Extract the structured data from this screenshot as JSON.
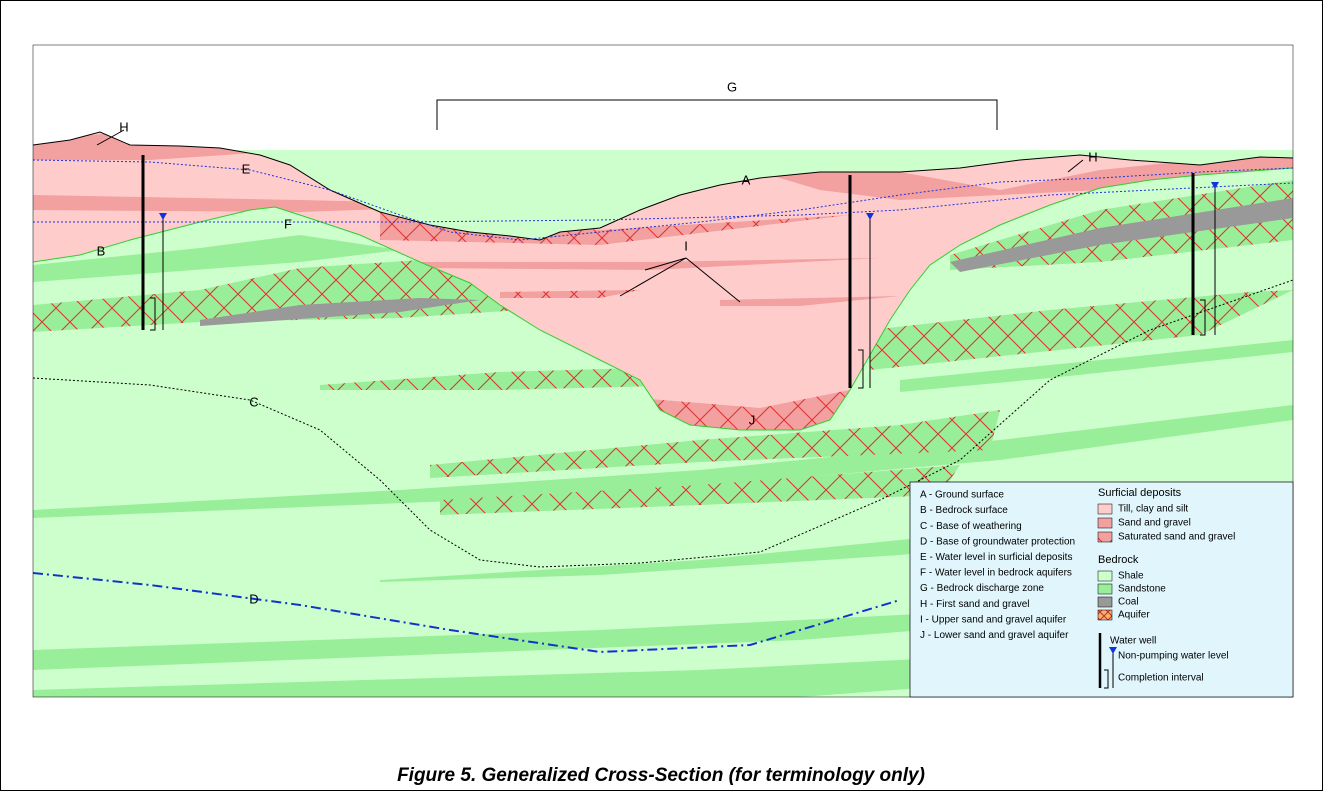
{
  "diagram_labels": [
    "H",
    "E",
    "F",
    "B",
    "C",
    "D",
    "G",
    "A",
    "H",
    "I",
    "J"
  ],
  "legend": {
    "terms": [
      "A - Ground surface",
      "B - Bedrock surface",
      "C - Base of weathering",
      "D - Base of groundwater protection",
      "E - Water level in surficial deposits",
      "F - Water level in bedrock aquifers",
      "G - Bedrock discharge zone",
      "H - First sand and gravel",
      "I - Upper sand and gravel aquifer",
      "J - Lower sand and gravel aquifer"
    ],
    "surficial_title": "Surficial deposits",
    "surficial_items": [
      "Till, clay and silt",
      "Sand and gravel",
      "Saturated sand and gravel"
    ],
    "bedrock_title": "Bedrock",
    "bedrock_items": [
      "Shale",
      "Sandstone",
      "Coal",
      "Aquifer"
    ],
    "well_items": [
      "Water well",
      "Non-pumping water level",
      "Completion interval"
    ]
  },
  "caption": "Figure 5. Generalized Cross-Section (for terminology only)"
}
